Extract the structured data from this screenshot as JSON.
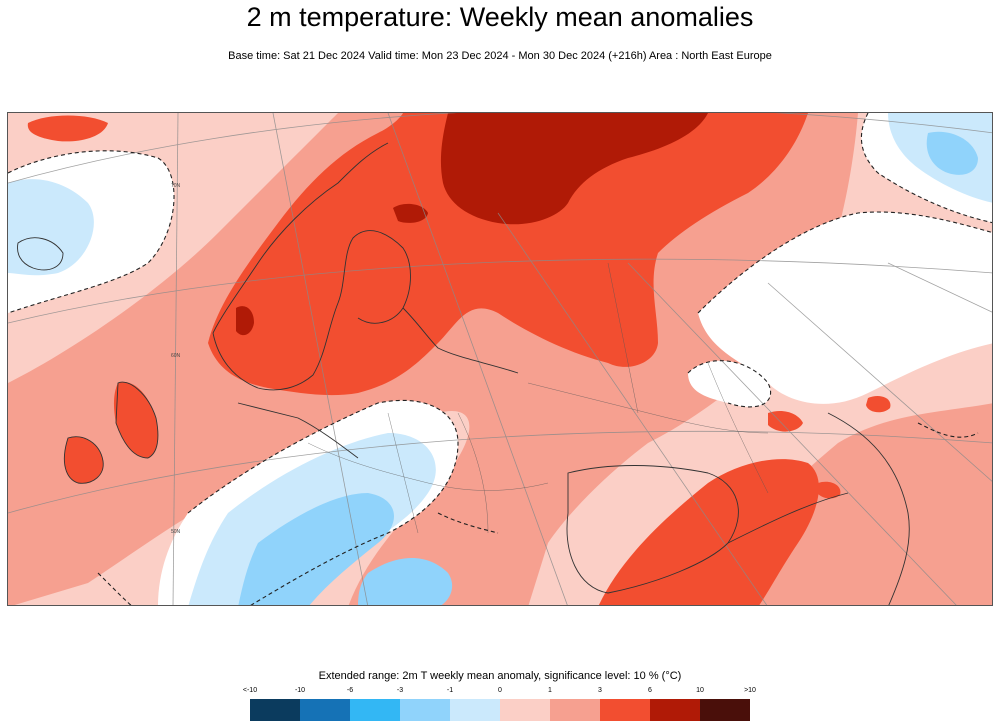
{
  "header": {
    "title": "2 m temperature: Weekly mean anomalies",
    "subtitle": "Base time: Sat 21 Dec 2024 Valid time: Mon 23 Dec 2024 - Mon 30 Dec 2024 (+216h) Area : North East Europe"
  },
  "map": {
    "graticule_labels": [
      "70N",
      "60N",
      "50N"
    ]
  },
  "legend": {
    "title": "Extended range: 2m T weekly mean anomaly, significance level: 10 % (°C)",
    "ticks": [
      "<-10",
      "-10",
      "-6",
      "-3",
      "-1",
      "0",
      "1",
      "3",
      "6",
      "10",
      ">10"
    ],
    "colors": [
      "#0b3b5e",
      "#1572b6",
      "#33b7f4",
      "#90d3fb",
      "#cbe9fc",
      "#ffffff",
      "#fbcfc6",
      "#f6a090",
      "#f24e30",
      "#b01a06",
      "#4a0f0a"
    ]
  }
}
